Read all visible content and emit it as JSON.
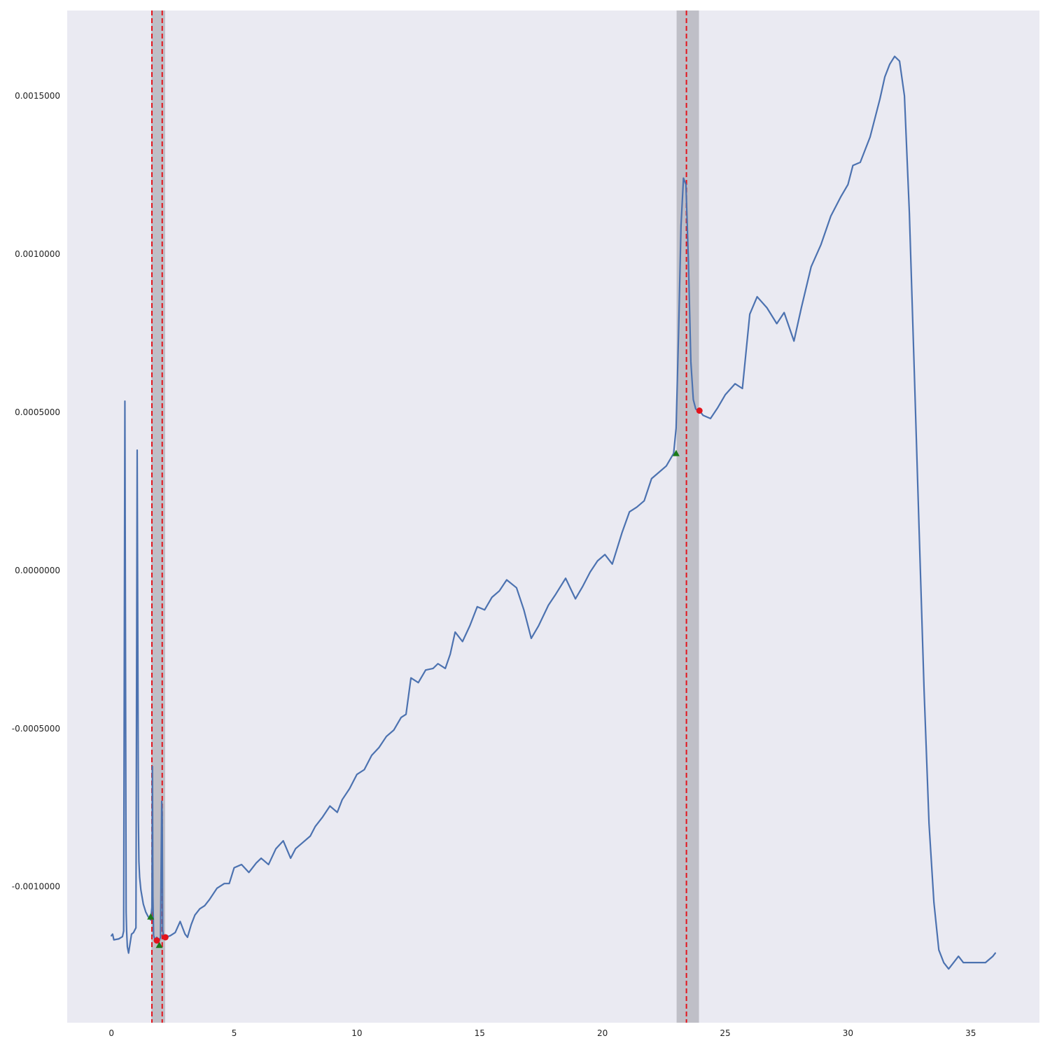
{
  "chart_data": {
    "type": "line",
    "title": "",
    "xlabel": "",
    "ylabel": "",
    "xlim": [
      -1.8,
      37.8
    ],
    "ylim": [
      -0.00143,
      0.00177
    ],
    "grid": false,
    "x_ticks": [
      {
        "value": 0,
        "label": "0"
      },
      {
        "value": 5,
        "label": "5"
      },
      {
        "value": 10,
        "label": "10"
      },
      {
        "value": 15,
        "label": "15"
      },
      {
        "value": 20,
        "label": "20"
      },
      {
        "value": 25,
        "label": "25"
      },
      {
        "value": 30,
        "label": "30"
      },
      {
        "value": 35,
        "label": "35"
      }
    ],
    "y_ticks": [
      {
        "value": 0.0015,
        "label": "0.0015000"
      },
      {
        "value": 0.001,
        "label": "0.0010000"
      },
      {
        "value": 0.0005,
        "label": "0.0005000"
      },
      {
        "value": 0.0,
        "label": "0.0000000"
      },
      {
        "value": -0.0005,
        "label": "-0.0005000"
      },
      {
        "value": -0.001,
        "label": "-0.0010000"
      }
    ],
    "shaded_regions": [
      {
        "x0": 1.63,
        "x1": 2.19,
        "color": "#bdbdc4"
      },
      {
        "x0": 23.02,
        "x1": 23.93,
        "color": "#bdbdc4"
      }
    ],
    "vertical_lines": [
      {
        "x": 1.65,
        "color": "#e3141c",
        "style": "dashed"
      },
      {
        "x": 2.07,
        "color": "#e3141c",
        "style": "dashed"
      },
      {
        "x": 23.42,
        "color": "#e3141c",
        "style": "dashed"
      }
    ],
    "start_markers": [
      {
        "x": 1.6,
        "y": -0.001095
      },
      {
        "x": 1.95,
        "y": -0.001185
      },
      {
        "x": 23.0,
        "y": 0.00037
      }
    ],
    "end_markers": [
      {
        "x": 1.85,
        "y": -0.00117
      },
      {
        "x": 2.2,
        "y": -0.00116
      },
      {
        "x": 23.95,
        "y": 0.000505
      }
    ],
    "series": [
      {
        "color": "#4c72b0",
        "x": [
          0,
          0.05,
          0.1,
          0.3,
          0.45,
          0.5,
          0.55,
          0.6,
          0.62,
          0.65,
          0.7,
          0.8,
          0.82,
          0.9,
          1.0,
          1.05,
          1.1,
          1.12,
          1.15,
          1.2,
          1.3,
          1.4,
          1.5,
          1.6,
          1.65,
          1.67,
          1.69,
          1.72,
          1.78,
          1.85,
          1.95,
          2.0,
          2.05,
          2.07,
          2.09,
          2.12,
          2.2,
          2.4,
          2.6,
          2.8,
          3.0,
          3.1,
          3.25,
          3.4,
          3.6,
          3.8,
          4.0,
          4.3,
          4.6,
          4.8,
          5.0,
          5.3,
          5.6,
          5.9,
          6.1,
          6.4,
          6.7,
          7.0,
          7.3,
          7.5,
          7.8,
          8.1,
          8.3,
          8.6,
          8.9,
          9.2,
          9.4,
          9.7,
          10.0,
          10.3,
          10.6,
          10.9,
          11.2,
          11.5,
          11.8,
          12.0,
          12.2,
          12.5,
          12.8,
          13.1,
          13.3,
          13.6,
          13.8,
          14.0,
          14.3,
          14.6,
          14.9,
          15.2,
          15.5,
          15.8,
          16.1,
          16.5,
          16.8,
          17.1,
          17.4,
          17.8,
          18.1,
          18.5,
          18.9,
          19.2,
          19.5,
          19.8,
          20.1,
          20.4,
          20.8,
          21.1,
          21.4,
          21.7,
          22.0,
          22.3,
          22.6,
          22.9,
          23.0,
          23.1,
          23.2,
          23.3,
          23.4,
          23.5,
          23.6,
          23.7,
          23.8,
          23.95,
          24.1,
          24.4,
          24.7,
          25.0,
          25.4,
          25.7,
          26.0,
          26.3,
          26.7,
          27.1,
          27.4,
          27.8,
          28.1,
          28.5,
          28.9,
          29.3,
          29.7,
          30.0,
          30.2,
          30.5,
          30.9,
          31.3,
          31.5,
          31.7,
          31.9,
          32.1,
          32.3,
          32.5,
          32.7,
          32.9,
          33.1,
          33.3,
          33.5,
          33.7,
          33.9,
          34.1,
          34.3,
          34.5,
          34.7,
          35.0,
          35.3,
          35.6,
          35.9,
          36.0
        ],
        "y": [
          -0.001155,
          -0.00115,
          -0.001168,
          -0.001165,
          -0.001158,
          -0.00114,
          0.000535,
          -0.00108,
          -0.00114,
          -0.00119,
          -0.00121,
          -0.00116,
          -0.00115,
          -0.001145,
          -0.00113,
          0.00038,
          -0.00079,
          -0.00092,
          -0.00097,
          -0.00101,
          -0.001055,
          -0.00108,
          -0.001095,
          -0.001105,
          -0.001065,
          -0.00062,
          -0.00103,
          -0.001155,
          -0.00117,
          -0.00116,
          -0.00117,
          -0.00116,
          -0.00073,
          -0.00077,
          -0.001135,
          -0.00116,
          -0.00116,
          -0.001155,
          -0.001145,
          -0.00111,
          -0.00115,
          -0.00116,
          -0.00112,
          -0.00109,
          -0.00107,
          -0.00106,
          -0.00104,
          -0.001005,
          -0.00099,
          -0.00099,
          -0.00094,
          -0.00093,
          -0.000955,
          -0.000925,
          -0.00091,
          -0.00093,
          -0.00088,
          -0.000855,
          -0.00091,
          -0.00088,
          -0.00086,
          -0.00084,
          -0.00081,
          -0.00078,
          -0.000745,
          -0.000765,
          -0.000725,
          -0.00069,
          -0.000645,
          -0.00063,
          -0.000585,
          -0.00056,
          -0.000525,
          -0.000505,
          -0.000465,
          -0.000455,
          -0.00034,
          -0.000355,
          -0.000315,
          -0.00031,
          -0.000295,
          -0.00031,
          -0.000265,
          -0.000195,
          -0.000225,
          -0.000175,
          -0.000115,
          -0.000125,
          -8.5e-05,
          -6.5e-05,
          -3e-05,
          -5.5e-05,
          -0.000125,
          -0.000215,
          -0.000175,
          -0.00011,
          -7.5e-05,
          -2.5e-05,
          -9e-05,
          -5e-05,
          -5e-06,
          3e-05,
          5e-05,
          2e-05,
          0.00012,
          0.000185,
          0.0002,
          0.00022,
          0.00029,
          0.00031,
          0.00033,
          0.00037,
          0.00045,
          0.00075,
          0.00109,
          0.00124,
          0.00122,
          0.00098,
          0.00066,
          0.00054,
          0.00051,
          0.000505,
          0.00049,
          0.00048,
          0.000515,
          0.000555,
          0.00059,
          0.000575,
          0.00081,
          0.000865,
          0.00083,
          0.00078,
          0.000815,
          0.000725,
          0.00083,
          0.00096,
          0.00103,
          0.00112,
          0.00118,
          0.00122,
          0.00128,
          0.00129,
          0.00137,
          0.00149,
          0.00156,
          0.0016,
          0.001625,
          0.00161,
          0.0015,
          0.00113,
          0.00063,
          0.00012,
          -0.00038,
          -0.0008,
          -0.00105,
          -0.0012,
          -0.00124,
          -0.00126,
          -0.00124,
          -0.00122,
          -0.00124,
          -0.00124,
          -0.00124,
          -0.00124,
          -0.00122,
          -0.00121
        ]
      }
    ]
  }
}
